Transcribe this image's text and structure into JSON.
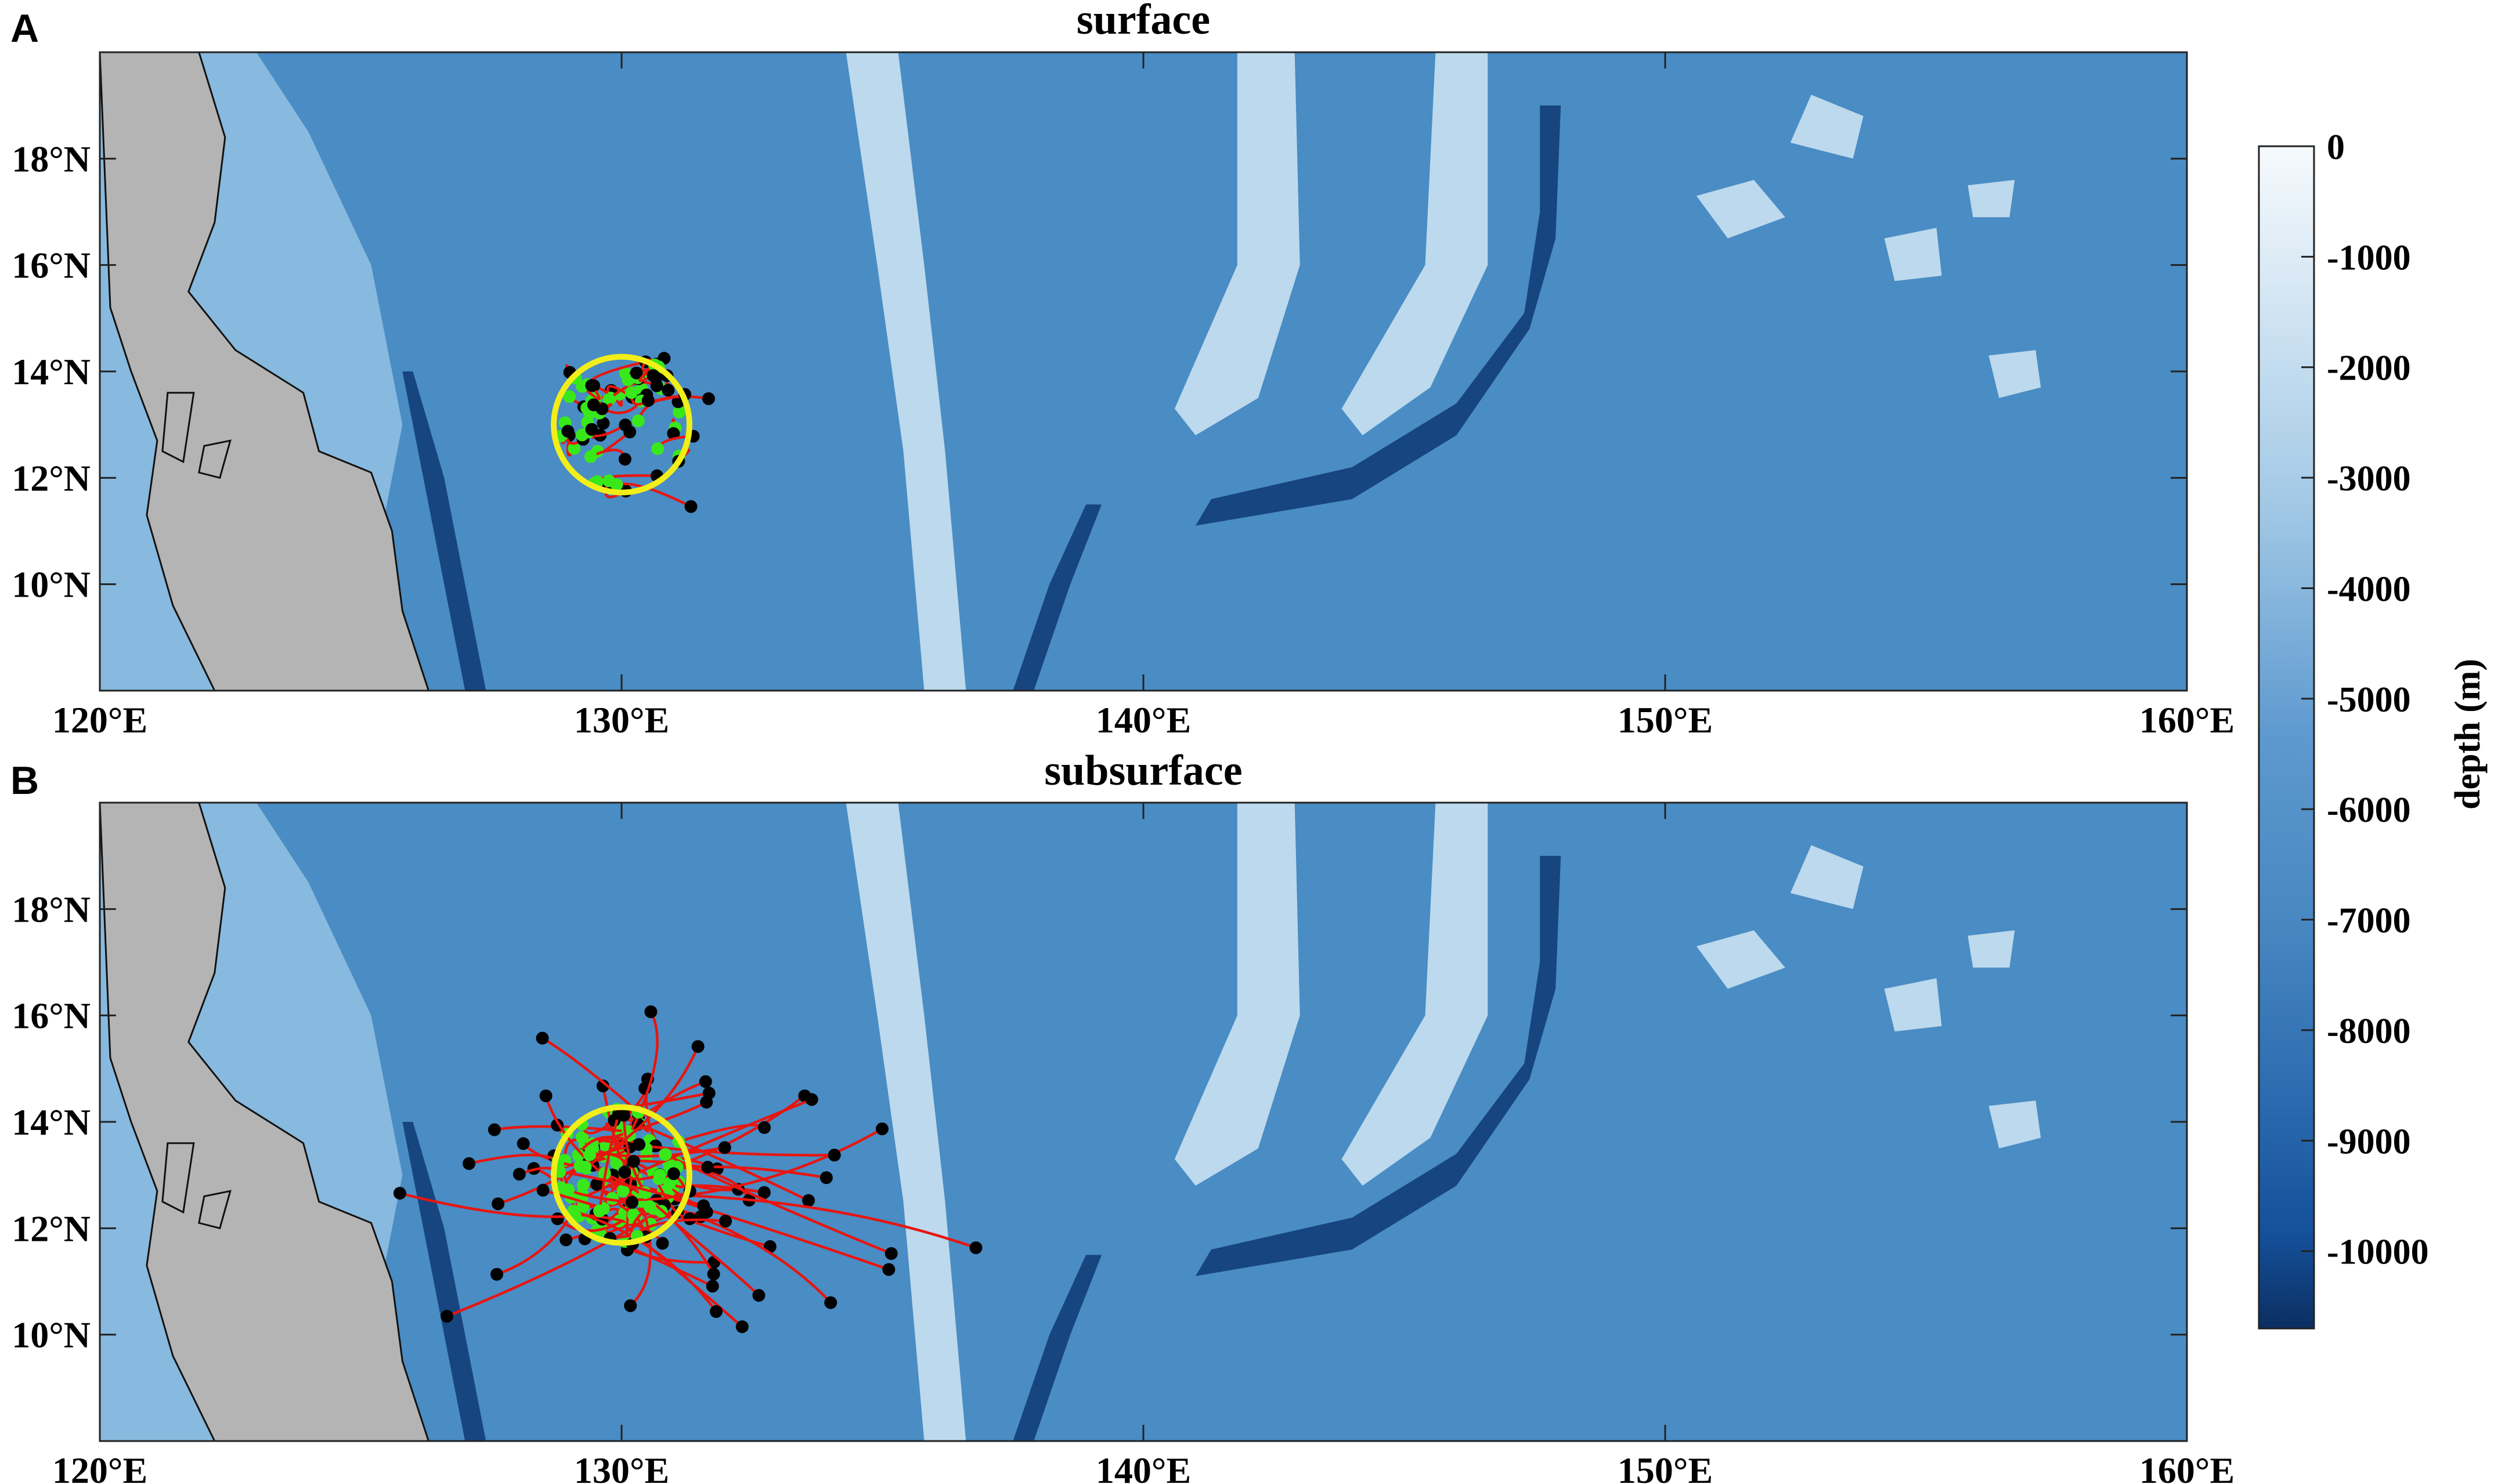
{
  "panels": [
    {
      "letter": "A",
      "title": "surface",
      "drift": {
        "count": 40,
        "spread_lon": 1.3,
        "spread_lat": 1.0,
        "east_bias": 1.2,
        "max_len": 3.0,
        "seed": 3
      }
    },
    {
      "letter": "B",
      "title": "subsurface",
      "drift": {
        "count": 95,
        "spread_lon": 4.5,
        "spread_lat": 2.2,
        "east_bias": 0.2,
        "max_len": 8.5,
        "seed": 11
      }
    }
  ],
  "map": {
    "lon_range": [
      120,
      160
    ],
    "lat_range": [
      8,
      20
    ],
    "x_ticks": [
      120,
      130,
      140,
      150,
      160
    ],
    "x_tick_labels": [
      "120°E",
      "130°E",
      "140°E",
      "150°E",
      "160°E"
    ],
    "y_ticks": [
      10,
      12,
      14,
      16,
      18
    ],
    "y_tick_labels": [
      "10°N",
      "12°N",
      "14°N",
      "16°N",
      "18°N"
    ],
    "release_circle": {
      "lon": 130,
      "lat": 13,
      "radius_deg": 1.3
    }
  },
  "colorbar": {
    "label": "depth (m)",
    "ticks": [
      0,
      -1000,
      -2000,
      -3000,
      -4000,
      -5000,
      -6000,
      -7000,
      -8000,
      -9000,
      -10000
    ],
    "tick_labels": [
      "0",
      "-1000",
      "-2000",
      "-3000",
      "-4000",
      "-5000",
      "-6000",
      "-7000",
      "-8000",
      "-9000",
      "-10000"
    ],
    "range": [
      0,
      -10700
    ]
  },
  "colors": {
    "ocean_deep": "#123f7a",
    "ocean_mid": "#4a8cc4",
    "ocean_shallow": "#8dbde0",
    "ridge": "#c6dff0",
    "land": "#b4b4b4",
    "trajectory": "#e8150f",
    "start_point": "#000000",
    "end_point": "#39e81a",
    "circle": "#f2ee1a"
  }
}
